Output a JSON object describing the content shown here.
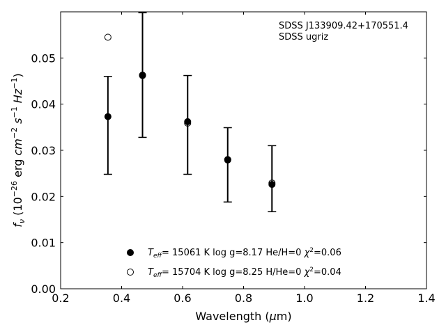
{
  "chart_data": {
    "type": "scatter",
    "xlabel": "Wavelength (μm)",
    "ylabel": "f_ν (10^-26 erg cm^-2 s^-1 Hz^-1)",
    "xlim": [
      0.2,
      1.4
    ],
    "ylim": [
      0.0,
      0.06
    ],
    "xticks": [
      "0.2",
      "0.4",
      "0.6",
      "0.8",
      "1.0",
      "1.2",
      "1.4"
    ],
    "yticks": [
      "0.00",
      "0.01",
      "0.02",
      "0.03",
      "0.04",
      "0.05"
    ],
    "grid": false,
    "annotations": [
      "SDSS J133909.42+170551.4",
      "SDSS ugriz"
    ],
    "legend_position": "lower-center",
    "observed": {
      "x": [
        0.3551,
        0.4686,
        0.6166,
        0.748,
        0.8932
      ],
      "y": [
        0.0373,
        0.0464,
        0.0361,
        0.028,
        0.0226
      ],
      "yerr_low": [
        0.0248,
        0.0328,
        0.0248,
        0.0188,
        0.0167
      ],
      "yerr_high": [
        0.046,
        0.0598,
        0.0462,
        0.0349,
        0.031
      ]
    },
    "series": [
      {
        "marker": "filled-circle",
        "label": {
          "param": "T",
          "sub": "eff",
          "text1": "= 15061 K  log g=8.17  He/H=0  ",
          "chi": "χ",
          "sup": "2",
          "text2": "=0.06"
        },
        "x": [
          0.3551,
          0.4686,
          0.6166,
          0.748,
          0.8932
        ],
        "y": [
          0.0373,
          0.0463,
          0.0362,
          0.028,
          0.0226
        ]
      },
      {
        "marker": "open-circle",
        "label": {
          "param": "T",
          "sub": "eff",
          "text1": "= 15704 K  log g=8.25  H/He=0  ",
          "chi": "χ",
          "sup": "2",
          "text2": "=0.04"
        },
        "x": [
          0.3551,
          0.4686,
          0.6166,
          0.748,
          0.8932
        ],
        "y": [
          0.0545,
          0.0462,
          0.0359,
          0.0279,
          0.0229
        ]
      }
    ]
  }
}
